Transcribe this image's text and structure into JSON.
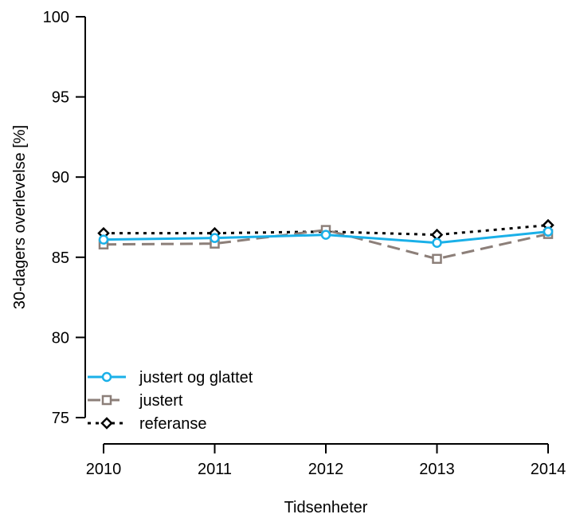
{
  "chart_data": {
    "type": "line",
    "xlabel": "Tidsenheter",
    "ylabel": "30-dagers overlevelse [%]",
    "x": [
      "2010",
      "2011",
      "2012",
      "2013",
      "2014"
    ],
    "ylim": [
      75,
      100
    ],
    "yticks": [
      75,
      80,
      85,
      90,
      95,
      100
    ],
    "grid": false,
    "legend_position": "bottom-left",
    "series": [
      {
        "name": "justert og glattet",
        "color": "#1ab0e8",
        "line_style": "solid",
        "marker": "circle",
        "values": [
          86.1,
          86.2,
          86.4,
          85.9,
          86.6
        ]
      },
      {
        "name": "justert",
        "color": "#8c7f79",
        "line_style": "dashed",
        "marker": "square",
        "values": [
          85.8,
          85.85,
          86.7,
          84.9,
          86.45
        ]
      },
      {
        "name": "referanse",
        "color": "#000000",
        "line_style": "dotted",
        "marker": "diamond",
        "values": [
          86.5,
          86.5,
          86.6,
          86.4,
          87.0
        ]
      }
    ]
  }
}
